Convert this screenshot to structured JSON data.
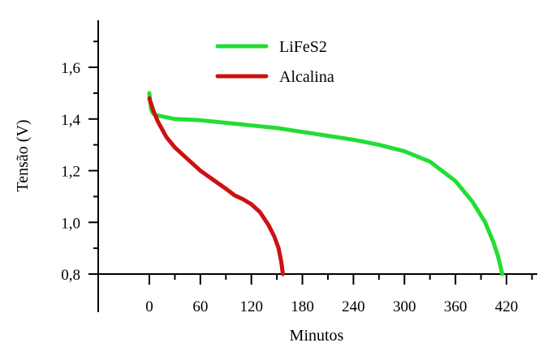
{
  "chart_data": {
    "type": "line",
    "title": "",
    "xlabel": "Minutos",
    "ylabel": "Tensão (V)",
    "xlim": [
      -58,
      450
    ],
    "ylim": [
      0.8,
      1.8
    ],
    "x_ticks": [
      0,
      60,
      120,
      180,
      240,
      300,
      360,
      420
    ],
    "x_tick_labels": [
      "0",
      "60",
      "120",
      "180",
      "240",
      "300",
      "360",
      "420"
    ],
    "y_ticks": [
      0.8,
      1.0,
      1.2,
      1.4,
      1.6
    ],
    "y_tick_labels": [
      "0,8",
      "1,0",
      "1,2",
      "1,4",
      "1,6"
    ],
    "grid": false,
    "legend_position": "top-center",
    "series": [
      {
        "name": "LiFeS2",
        "color": "#22dd33",
        "x": [
          0,
          1,
          2,
          3,
          5,
          8,
          15,
          30,
          60,
          90,
          120,
          150,
          180,
          210,
          240,
          270,
          300,
          330,
          360,
          380,
          395,
          405,
          410,
          415
        ],
        "y": [
          1.5,
          1.47,
          1.44,
          1.43,
          1.42,
          1.415,
          1.41,
          1.4,
          1.395,
          1.385,
          1.375,
          1.365,
          1.35,
          1.335,
          1.32,
          1.3,
          1.275,
          1.235,
          1.16,
          1.08,
          1.0,
          0.92,
          0.87,
          0.8
        ]
      },
      {
        "name": "Alcalina",
        "color": "#cc1111",
        "x": [
          0,
          5,
          10,
          20,
          30,
          45,
          60,
          75,
          90,
          100,
          110,
          120,
          130,
          140,
          147,
          152,
          155,
          157
        ],
        "y": [
          1.48,
          1.43,
          1.39,
          1.33,
          1.29,
          1.245,
          1.2,
          1.165,
          1.13,
          1.105,
          1.09,
          1.07,
          1.04,
          0.99,
          0.945,
          0.9,
          0.85,
          0.8
        ]
      }
    ]
  }
}
